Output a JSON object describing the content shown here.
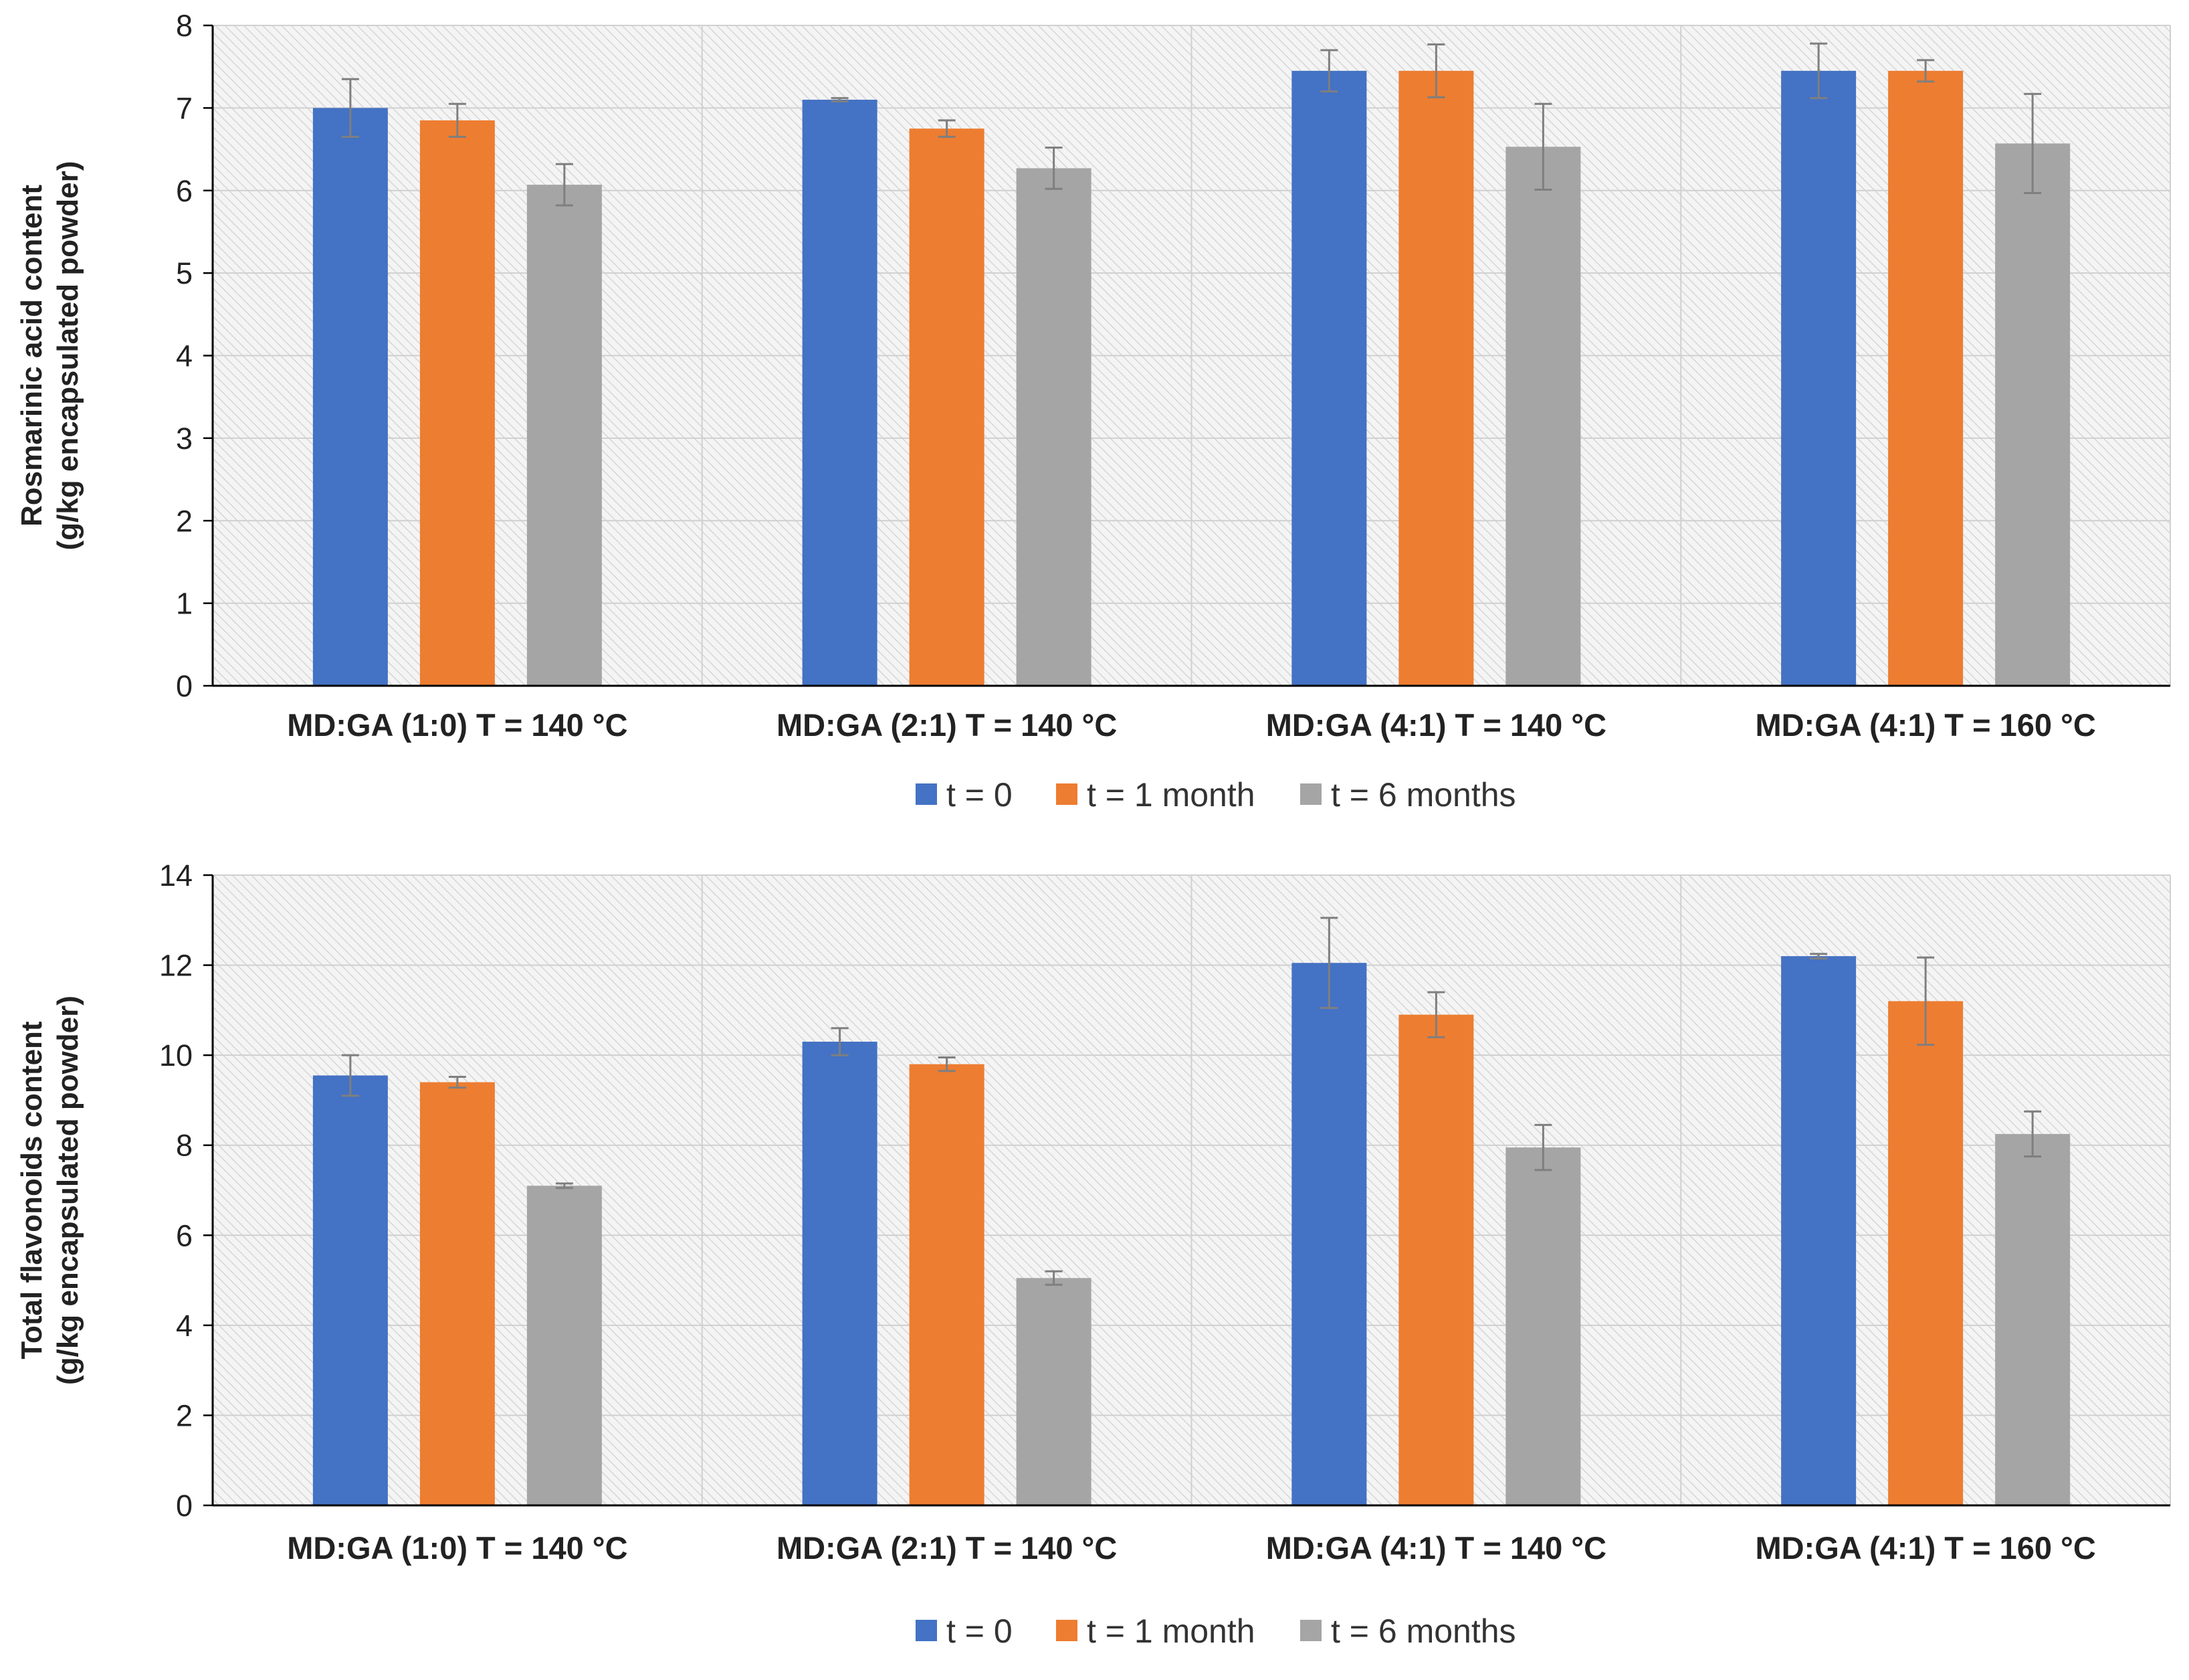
{
  "chart_data": [
    {
      "type": "bar",
      "title": "",
      "ylabel_lines": [
        "Rosmarinic acid content",
        "(g/kg encapsulated powder)"
      ],
      "xlabel": "",
      "ylim": [
        0,
        8
      ],
      "yticks": [
        0,
        1,
        2,
        3,
        4,
        5,
        6,
        7,
        8
      ],
      "grid": true,
      "legend_position": "bottom",
      "categories": [
        "MD:GA (1:0)  T = 140 °C",
        "MD:GA (2:1)  T = 140 °C",
        "MD:GA (4:1) T = 140 °C",
        "MD:GA (4:1) T = 160 °C"
      ],
      "series": [
        {
          "name": "t = 0",
          "color": "#4472C4",
          "values": [
            7.0,
            7.1,
            7.45,
            7.45
          ],
          "errors": [
            0.35,
            0.02,
            0.25,
            0.33
          ]
        },
        {
          "name": "t = 1 month",
          "color": "#ED7D31",
          "values": [
            6.85,
            6.75,
            7.45,
            7.45
          ],
          "errors": [
            0.2,
            0.1,
            0.32,
            0.13
          ]
        },
        {
          "name": "t = 6 months",
          "color": "#A5A5A5",
          "values": [
            6.07,
            6.27,
            6.53,
            6.57
          ],
          "errors": [
            0.25,
            0.25,
            0.52,
            0.6
          ]
        }
      ]
    },
    {
      "type": "bar",
      "title": "",
      "ylabel_lines": [
        "Total flavonoids content",
        "(g/kg encapsulated powder)"
      ],
      "xlabel": "",
      "ylim": [
        0,
        14
      ],
      "yticks": [
        0,
        2,
        4,
        6,
        8,
        10,
        12,
        14
      ],
      "grid": true,
      "legend_position": "bottom",
      "categories": [
        "MD:GA (1:0)  T = 140 °C",
        "MD:GA (2:1)  T = 140 °C",
        "MD:GA (4:1) T = 140 °C",
        "MD:GA (4:1) T = 160 °C"
      ],
      "series": [
        {
          "name": "t = 0",
          "color": "#4472C4",
          "values": [
            9.55,
            10.3,
            12.05,
            12.2
          ],
          "errors": [
            0.45,
            0.3,
            1.0,
            0.05
          ]
        },
        {
          "name": "t = 1 month",
          "color": "#ED7D31",
          "values": [
            9.4,
            9.8,
            10.9,
            11.2
          ],
          "errors": [
            0.12,
            0.15,
            0.5,
            0.97
          ]
        },
        {
          "name": "t = 6 months",
          "color": "#A5A5A5",
          "values": [
            7.1,
            5.05,
            7.95,
            8.25
          ],
          "errors": [
            0.05,
            0.15,
            0.5,
            0.5
          ]
        }
      ]
    }
  ]
}
